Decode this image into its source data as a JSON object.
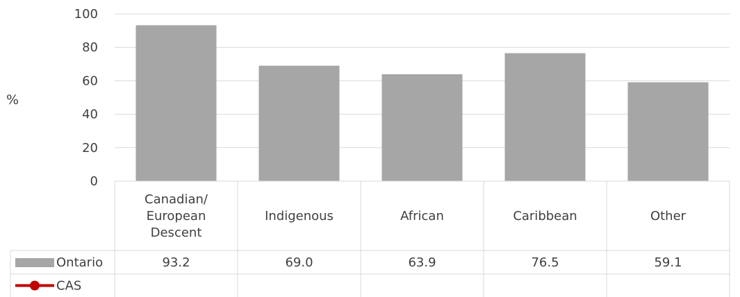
{
  "chart_data": {
    "type": "bar",
    "categories": [
      "Canadian/ European Descent",
      "Indigenous",
      "African",
      "Caribbean",
      "Other"
    ],
    "category_lines": [
      [
        "Canadian/",
        "European",
        "Descent"
      ],
      [
        "Indigenous"
      ],
      [
        "African"
      ],
      [
        "Caribbean"
      ],
      [
        "Other"
      ]
    ],
    "series": [
      {
        "name": "Ontario",
        "values": [
          93.2,
          69.0,
          63.9,
          76.5,
          59.1
        ],
        "labels": [
          "93.2",
          "69.0",
          "63.9",
          "76.5",
          "59.1"
        ],
        "color": "#a6a6a6",
        "legend_kind": "bar"
      },
      {
        "name": "CAS",
        "values": [
          null,
          null,
          null,
          null,
          null
        ],
        "labels": [
          "",
          "",
          "",
          "",
          ""
        ],
        "color": "#c00000",
        "legend_kind": "line-marker"
      }
    ],
    "ylabel": "%",
    "xlabel": "",
    "ylim": [
      0,
      100
    ],
    "yticks": [
      "0",
      "20",
      "40",
      "60",
      "80",
      "100"
    ],
    "grid": true,
    "data_table": true,
    "colors": {
      "gridline": "#d9d9d9",
      "border": "#d9d9d9",
      "text": "#404040"
    }
  }
}
